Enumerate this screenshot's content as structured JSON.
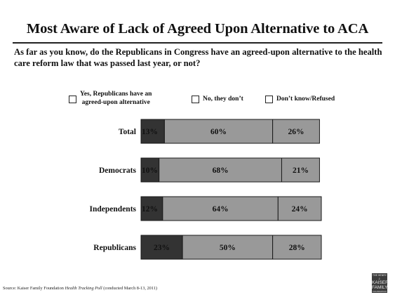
{
  "title": "Most Aware of Lack of Agreed Upon Alternative to ACA",
  "question": "As far as you know, do the Republicans in Congress have an agreed-upon alternative to the health care reform law that was passed last year, or not?",
  "legend": [
    {
      "label_line1": "Yes, Republicans have an",
      "label_line2": "agreed-upon alternative"
    },
    {
      "label_line1": "No, they don’t",
      "label_line2": ""
    },
    {
      "label_line1": "Don’t know/Refused",
      "label_line2": ""
    }
  ],
  "source": {
    "prefix": "Source: Kaiser Family Foundation ",
    "title": "Health Tracking Poll",
    "suffix": " (conducted March 8-13, 2011)"
  },
  "logo": {
    "line1": "THE HENRY J.",
    "line2": "KAISER",
    "line3": "FAMILY",
    "line4": "FOUNDATION"
  },
  "chart_data": {
    "type": "bar",
    "orientation": "horizontal",
    "stacked": true,
    "categories": [
      "Total",
      "Democrats",
      "Independents",
      "Republicans"
    ],
    "series": [
      {
        "name": "Yes, Republicans have an agreed-upon alternative",
        "values": [
          13,
          10,
          12,
          23
        ],
        "color": "#333333"
      },
      {
        "name": "No, they don’t",
        "values": [
          60,
          68,
          64,
          50
        ],
        "color": "#999999"
      },
      {
        "name": "Don’t know/Refused",
        "values": [
          26,
          21,
          24,
          28
        ],
        "color": "#999999"
      }
    ],
    "value_labels": [
      [
        "13%",
        "60%",
        "26%"
      ],
      [
        "10%",
        "68%",
        "21%"
      ],
      [
        "12%",
        "64%",
        "24%"
      ],
      [
        "23%",
        "50%",
        "28%"
      ]
    ],
    "xlim": [
      0,
      100
    ],
    "grid": false,
    "legend_position": "top"
  }
}
